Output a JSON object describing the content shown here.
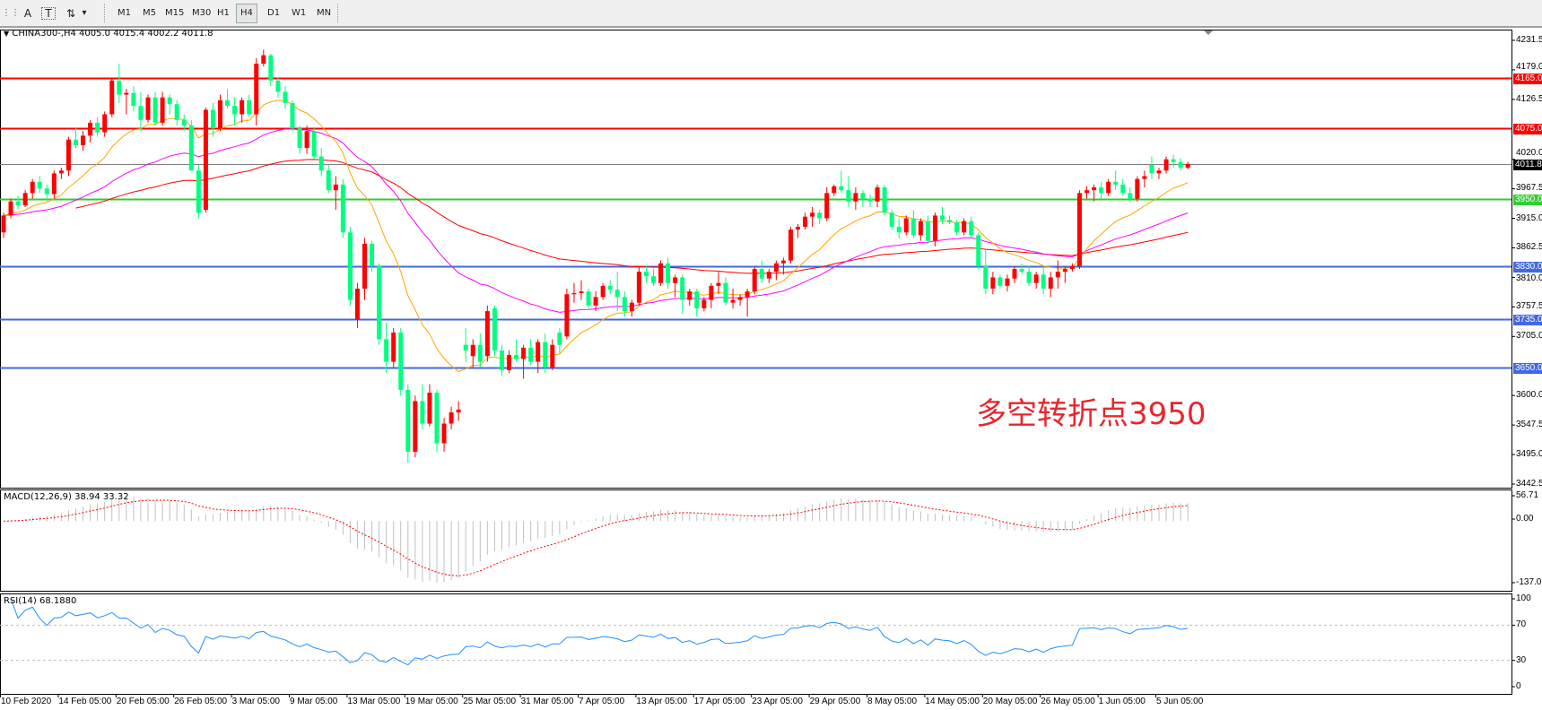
{
  "toolbar": {
    "tools": [
      {
        "name": "text-icon",
        "glyph": "A"
      },
      {
        "name": "text-label-icon",
        "glyph": "T"
      },
      {
        "name": "arrows-icon",
        "glyph": "⇅"
      },
      {
        "name": "dropdown-icon",
        "glyph": "▾"
      }
    ],
    "timeframes": [
      "M1",
      "M5",
      "M15",
      "M30",
      "H1",
      "H4",
      "D1",
      "W1",
      "MN"
    ],
    "active_timeframe": "H4"
  },
  "chart_header": {
    "collapse_icon": "▼",
    "text": "CHINA300-,H4  4005.0 4015.4 4002.2 4011.8"
  },
  "annotation": "多空转折点3950",
  "chart_data": {
    "type": "candlestick",
    "symbol": "CHINA300-",
    "timeframe": "H4",
    "colors": {
      "up": "#ff0000",
      "down": "#00ff7f",
      "ma_fast": "#ffa500",
      "ma_mid": "#ff00ff",
      "ma_slow": "#ff0000",
      "macd_hist": "#c0c0c0",
      "macd_signal": "#ff0000",
      "rsi": "#1e90ff"
    },
    "ylim": [
      3442.5,
      4231.5
    ],
    "y_ticks": [
      "4231.5",
      "4179.0",
      "4126.5",
      "4020.0",
      "3967.5",
      "3915.0",
      "3862.5",
      "3810.0",
      "3757.5",
      "3705.0",
      "3600.0",
      "3547.5",
      "3495.0",
      "3442.5"
    ],
    "levels": [
      {
        "price": 4165.0,
        "label": "4165.0",
        "color": "#ff0000"
      },
      {
        "price": 4075.0,
        "label": "4075.0",
        "color": "#ff0000"
      },
      {
        "price": 4011.8,
        "label": "4011.8",
        "color": "#808080",
        "box": "#000000"
      },
      {
        "price": 3950.0,
        "label": "3950.0",
        "color": "#32cd32"
      },
      {
        "price": 3830.0,
        "label": "3830.0",
        "color": "#4169e1"
      },
      {
        "price": 3735.0,
        "label": "3735.0",
        "color": "#4169e1"
      },
      {
        "price": 3650.0,
        "label": "3650.0",
        "color": "#4169e1"
      }
    ],
    "x_labels": [
      "10 Feb 2020",
      "14 Feb 05:00",
      "20 Feb 05:00",
      "26 Feb 05:00",
      "3 Mar 05:00",
      "9 Mar 05:00",
      "13 Mar 05:00",
      "19 Mar 05:00",
      "25 Mar 05:00",
      "31 Mar 05:00",
      "7 Apr 05:00",
      "13 Apr 05:00",
      "17 Apr 05:00",
      "23 Apr 05:00",
      "29 Apr 05:00",
      "8 May 05:00",
      "14 May 05:00",
      "20 May 05:00",
      "26 May 05:00",
      "1 Jun 05:00",
      "5 Jun 05:00"
    ],
    "ohlc": [
      [
        3890,
        3925,
        3880,
        3920
      ],
      [
        3920,
        3950,
        3915,
        3945
      ],
      [
        3945,
        3955,
        3930,
        3938
      ],
      [
        3938,
        3965,
        3935,
        3960
      ],
      [
        3960,
        3985,
        3950,
        3980
      ],
      [
        3980,
        3990,
        3960,
        3968
      ],
      [
        3968,
        3975,
        3945,
        3958
      ],
      [
        3958,
        4000,
        3950,
        3995
      ],
      [
        3995,
        4005,
        3985,
        4000
      ],
      [
        4000,
        4060,
        3990,
        4055
      ],
      [
        4055,
        4075,
        4040,
        4045
      ],
      [
        4045,
        4070,
        4035,
        4062
      ],
      [
        4062,
        4090,
        4050,
        4085
      ],
      [
        4085,
        4095,
        4060,
        4068
      ],
      [
        4068,
        4105,
        4060,
        4100
      ],
      [
        4100,
        4165,
        4095,
        4160
      ],
      [
        4160,
        4190,
        4120,
        4135
      ],
      [
        4135,
        4145,
        4100,
        4138
      ],
      [
        4138,
        4150,
        4105,
        4115
      ],
      [
        4115,
        4140,
        4070,
        4090
      ],
      [
        4090,
        4135,
        4085,
        4130
      ],
      [
        4130,
        4140,
        4080,
        4085
      ],
      [
        4085,
        4140,
        4080,
        4130
      ],
      [
        4130,
        4135,
        4100,
        4118
      ],
      [
        4118,
        4125,
        4080,
        4090
      ],
      [
        4090,
        4100,
        4070,
        4080
      ],
      [
        4080,
        4090,
        4000,
        4000
      ],
      [
        4000,
        4010,
        3915,
        3925
      ],
      [
        3930,
        4112,
        3925,
        4108
      ],
      [
        4108,
        4120,
        4060,
        4075
      ],
      [
        4075,
        4135,
        4070,
        4125
      ],
      [
        4125,
        4145,
        4110,
        4115
      ],
      [
        4115,
        4130,
        4080,
        4100
      ],
      [
        4100,
        4130,
        4085,
        4125
      ],
      [
        4125,
        4135,
        4095,
        4100
      ],
      [
        4100,
        4200,
        4080,
        4190
      ],
      [
        4190,
        4215,
        4185,
        4205
      ],
      [
        4205,
        4208,
        4150,
        4160
      ],
      [
        4160,
        4165,
        4130,
        4140
      ],
      [
        4140,
        4150,
        4110,
        4120
      ],
      [
        4120,
        4125,
        4070,
        4075
      ],
      [
        4075,
        4080,
        4030,
        4040
      ],
      [
        4040,
        4080,
        4030,
        4070
      ],
      [
        4070,
        4075,
        4020,
        4025
      ],
      [
        4025,
        4040,
        3990,
        4000
      ],
      [
        4000,
        4010,
        3960,
        3965
      ],
      [
        3965,
        3990,
        3930,
        3975
      ],
      [
        3975,
        3985,
        3880,
        3890
      ],
      [
        3890,
        3900,
        3760,
        3770
      ],
      [
        3735,
        3800,
        3720,
        3790
      ],
      [
        3790,
        3880,
        3770,
        3870
      ],
      [
        3870,
        3875,
        3820,
        3830
      ],
      [
        3830,
        3835,
        3690,
        3700
      ],
      [
        3700,
        3730,
        3640,
        3660
      ],
      [
        3660,
        3720,
        3650,
        3712
      ],
      [
        3712,
        3720,
        3600,
        3610
      ],
      [
        3610,
        3620,
        3480,
        3500
      ],
      [
        3500,
        3600,
        3490,
        3590
      ],
      [
        3590,
        3620,
        3540,
        3550
      ],
      [
        3550,
        3620,
        3545,
        3605
      ],
      [
        3605,
        3610,
        3500,
        3515
      ],
      [
        3515,
        3560,
        3500,
        3550
      ],
      [
        3550,
        3580,
        3540,
        3570
      ],
      [
        3570,
        3590,
        3555,
        3575
      ],
      [
        3690,
        3720,
        3660,
        3680
      ],
      [
        3670,
        3700,
        3650,
        3690
      ],
      [
        3690,
        3710,
        3650,
        3660
      ],
      [
        3670,
        3760,
        3660,
        3750
      ],
      [
        3755,
        3760,
        3670,
        3680
      ],
      [
        3680,
        3690,
        3635,
        3645
      ],
      [
        3645,
        3680,
        3640,
        3672
      ],
      [
        3672,
        3700,
        3660,
        3665
      ],
      [
        3665,
        3690,
        3630,
        3685
      ],
      [
        3685,
        3700,
        3655,
        3660
      ],
      [
        3660,
        3700,
        3640,
        3695
      ],
      [
        3695,
        3710,
        3640,
        3650
      ],
      [
        3650,
        3700,
        3645,
        3690
      ],
      [
        3712,
        3720,
        3675,
        3690
      ],
      [
        3705,
        3790,
        3700,
        3780
      ],
      [
        3780,
        3800,
        3765,
        3782
      ],
      [
        3782,
        3805,
        3770,
        3785
      ],
      [
        3785,
        3790,
        3755,
        3760
      ],
      [
        3760,
        3785,
        3750,
        3775
      ],
      [
        3775,
        3800,
        3770,
        3795
      ],
      [
        3795,
        3805,
        3780,
        3788
      ],
      [
        3788,
        3820,
        3750,
        3775
      ],
      [
        3775,
        3785,
        3740,
        3750
      ],
      [
        3750,
        3770,
        3740,
        3765
      ],
      [
        3765,
        3830,
        3760,
        3820
      ],
      [
        3820,
        3830,
        3800,
        3812
      ],
      [
        3812,
        3825,
        3795,
        3800
      ],
      [
        3800,
        3840,
        3795,
        3835
      ],
      [
        3835,
        3845,
        3790,
        3800
      ],
      [
        3800,
        3815,
        3775,
        3810
      ],
      [
        3810,
        3815,
        3745,
        3770
      ],
      [
        3770,
        3790,
        3760,
        3785
      ],
      [
        3785,
        3790,
        3740,
        3755
      ],
      [
        3755,
        3775,
        3750,
        3770
      ],
      [
        3770,
        3800,
        3755,
        3795
      ],
      [
        3795,
        3820,
        3780,
        3800
      ],
      [
        3800,
        3810,
        3760,
        3765
      ],
      [
        3765,
        3790,
        3755,
        3770
      ],
      [
        3770,
        3780,
        3760,
        3775
      ],
      [
        3775,
        3790,
        3740,
        3785
      ],
      [
        3785,
        3830,
        3780,
        3825
      ],
      [
        3825,
        3840,
        3800,
        3808
      ],
      [
        3808,
        3825,
        3800,
        3820
      ],
      [
        3820,
        3840,
        3805,
        3835
      ],
      [
        3835,
        3845,
        3815,
        3840
      ],
      [
        3840,
        3900,
        3835,
        3895
      ],
      [
        3895,
        3905,
        3880,
        3900
      ],
      [
        3900,
        3925,
        3895,
        3918
      ],
      [
        3918,
        3935,
        3900,
        3925
      ],
      [
        3925,
        3930,
        3905,
        3915
      ],
      [
        3915,
        3970,
        3910,
        3960
      ],
      [
        3960,
        3975,
        3955,
        3972
      ],
      [
        3972,
        4000,
        3960,
        3965
      ],
      [
        3965,
        3990,
        3935,
        3945
      ],
      [
        3945,
        3970,
        3930,
        3960
      ],
      [
        3960,
        3965,
        3935,
        3950
      ],
      [
        3950,
        3958,
        3935,
        3945
      ],
      [
        3945,
        3975,
        3935,
        3970
      ],
      [
        3970,
        3975,
        3920,
        3925
      ],
      [
        3925,
        3930,
        3895,
        3900
      ],
      [
        3900,
        3915,
        3880,
        3890
      ],
      [
        3890,
        3920,
        3885,
        3915
      ],
      [
        3915,
        3930,
        3880,
        3885
      ],
      [
        3885,
        3915,
        3875,
        3910
      ],
      [
        3910,
        3920,
        3870,
        3875
      ],
      [
        3875,
        3925,
        3865,
        3920
      ],
      [
        3920,
        3935,
        3905,
        3912
      ],
      [
        3912,
        3920,
        3905,
        3908
      ],
      [
        3908,
        3912,
        3885,
        3890
      ],
      [
        3890,
        3915,
        3885,
        3910
      ],
      [
        3910,
        3918,
        3880,
        3885
      ],
      [
        3885,
        3890,
        3825,
        3830
      ],
      [
        3830,
        3860,
        3780,
        3790
      ],
      [
        3790,
        3820,
        3780,
        3810
      ],
      [
        3810,
        3815,
        3790,
        3795
      ],
      [
        3795,
        3815,
        3785,
        3808
      ],
      [
        3808,
        3830,
        3800,
        3825
      ],
      [
        3825,
        3835,
        3815,
        3820
      ],
      [
        3820,
        3830,
        3795,
        3800
      ],
      [
        3800,
        3820,
        3790,
        3815
      ],
      [
        3815,
        3830,
        3780,
        3790
      ],
      [
        3790,
        3820,
        3775,
        3810
      ],
      [
        3810,
        3840,
        3790,
        3820
      ],
      [
        3820,
        3830,
        3800,
        3825
      ],
      [
        3825,
        3835,
        3820,
        3830
      ],
      [
        3830,
        3965,
        3825,
        3960
      ],
      [
        3960,
        3972,
        3950,
        3965
      ],
      [
        3965,
        3975,
        3945,
        3970
      ],
      [
        3970,
        3980,
        3950,
        3960
      ],
      [
        3960,
        3985,
        3955,
        3980
      ],
      [
        3980,
        4000,
        3965,
        3975
      ],
      [
        3975,
        3985,
        3955,
        3960
      ],
      [
        3960,
        3970,
        3945,
        3950
      ],
      [
        3950,
        3990,
        3945,
        3985
      ],
      [
        3985,
        4000,
        3970,
        3990
      ],
      [
        4010,
        4025,
        3985,
        3995
      ],
      [
        3995,
        4005,
        3985,
        4000
      ],
      [
        4000,
        4025,
        3995,
        4020
      ],
      [
        4020,
        4028,
        4005,
        4015
      ],
      [
        4015,
        4022,
        4000,
        4005
      ],
      [
        4005,
        4015.4,
        4002.2,
        4011.8
      ]
    ],
    "macd": {
      "label": "MACD(12,26,9) 38.94 33.32",
      "ylim": [
        -137.01,
        56.71
      ],
      "y_ticks": [
        "56.71",
        "0.00",
        "-137.01"
      ]
    },
    "rsi": {
      "label": "RSI(14) 68.1880",
      "ylim": [
        0,
        100
      ],
      "y_ticks": [
        "100",
        "70",
        "30",
        "0"
      ],
      "levels": [
        70,
        30
      ]
    }
  }
}
